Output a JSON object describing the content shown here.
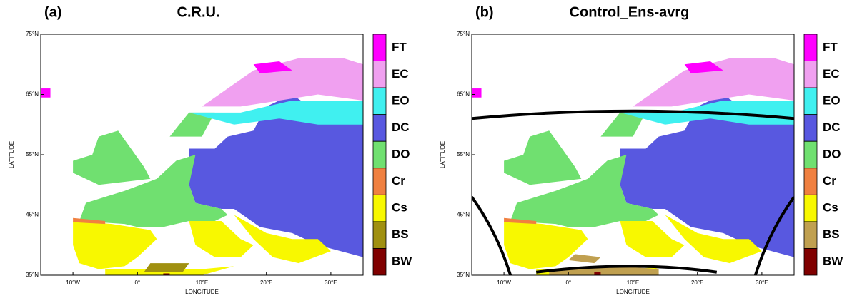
{
  "panels": [
    {
      "label": "(a)",
      "title": "C.R.U.",
      "legend": [
        {
          "label": "FT",
          "color": "#ff00ff"
        },
        {
          "label": "EC",
          "color": "#f0a0f0"
        },
        {
          "label": "EO",
          "color": "#40f0f0"
        },
        {
          "label": "DC",
          "color": "#5858e0"
        },
        {
          "label": "DO",
          "color": "#70e070"
        },
        {
          "label": "Cr",
          "color": "#f08040"
        },
        {
          "label": "Cs",
          "color": "#f8f800"
        },
        {
          "label": "BS",
          "color": "#a09010"
        },
        {
          "label": "BW",
          "color": "#800000"
        }
      ]
    },
    {
      "label": "(b)",
      "title": "Control_Ens-avrg",
      "legend": [
        {
          "label": "FT",
          "color": "#ff00ff"
        },
        {
          "label": "EC",
          "color": "#f0a0f0"
        },
        {
          "label": "EO",
          "color": "#40f0f0"
        },
        {
          "label": "DC",
          "color": "#5858e0"
        },
        {
          "label": "DO",
          "color": "#70e070"
        },
        {
          "label": "Cr",
          "color": "#f08040"
        },
        {
          "label": "Cs",
          "color": "#f8f800"
        },
        {
          "label": "BS",
          "color": "#c0a050"
        },
        {
          "label": "BW",
          "color": "#800000"
        }
      ]
    }
  ],
  "y_axis_label": "LATITUDE",
  "x_axis_label": "LONGITUDE",
  "lat_ticks": [
    "75°N",
    "65°N",
    "55°N",
    "45°N",
    "35°N"
  ],
  "lon_ticks": [
    "10°W",
    "0°",
    "10°E",
    "20°E",
    "30°E"
  ]
}
